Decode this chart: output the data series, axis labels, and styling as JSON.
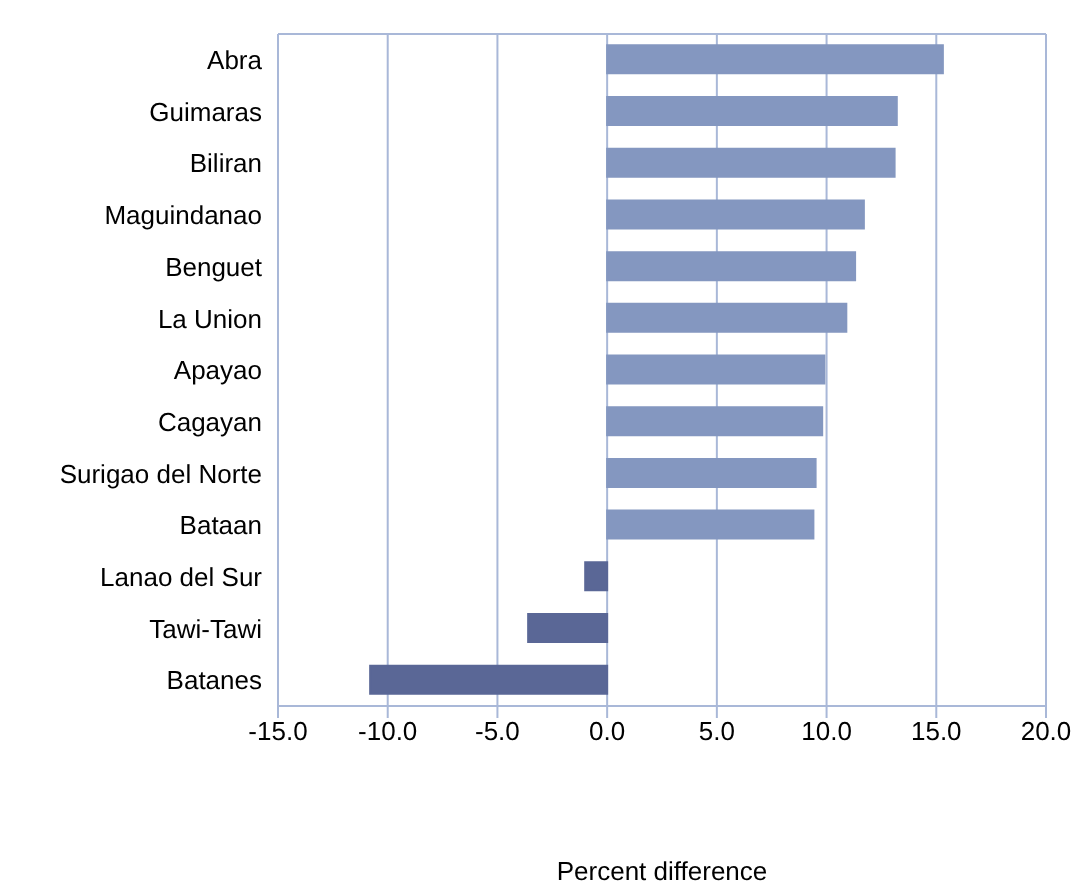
{
  "chart_data": {
    "type": "bar",
    "orientation": "horizontal",
    "xlabel": "Percent difference",
    "categories": [
      "Abra",
      "Guimaras",
      "Biliran",
      "Maguindanao",
      "Benguet",
      "La Union",
      "Apayao",
      "Cagayan",
      "Surigao del Norte",
      "Bataan",
      "Lanao del Sur",
      "Tawi-Tawi",
      "Batanes"
    ],
    "values": [
      15.3,
      13.2,
      13.1,
      11.7,
      11.3,
      10.9,
      9.9,
      9.8,
      9.5,
      9.4,
      -1.0,
      -3.6,
      -10.8
    ],
    "colors": [
      "#8497c0",
      "#8497c0",
      "#8497c0",
      "#8497c0",
      "#8497c0",
      "#8497c0",
      "#8497c0",
      "#8497c0",
      "#8497c0",
      "#8497c0",
      "#5a6796",
      "#5a6796",
      "#5a6796"
    ],
    "xlim": [
      -15,
      20
    ],
    "xticks": [
      {
        "value": -15,
        "label": "-15.0"
      },
      {
        "value": -10,
        "label": "-10.0"
      },
      {
        "value": -5,
        "label": "-5.0"
      },
      {
        "value": 0,
        "label": "0.0"
      },
      {
        "value": 5,
        "label": "5.0"
      },
      {
        "value": 10,
        "label": "10.0"
      },
      {
        "value": 15,
        "label": "15.0"
      },
      {
        "value": 20,
        "label": "20.0"
      }
    ],
    "grid": "x"
  }
}
